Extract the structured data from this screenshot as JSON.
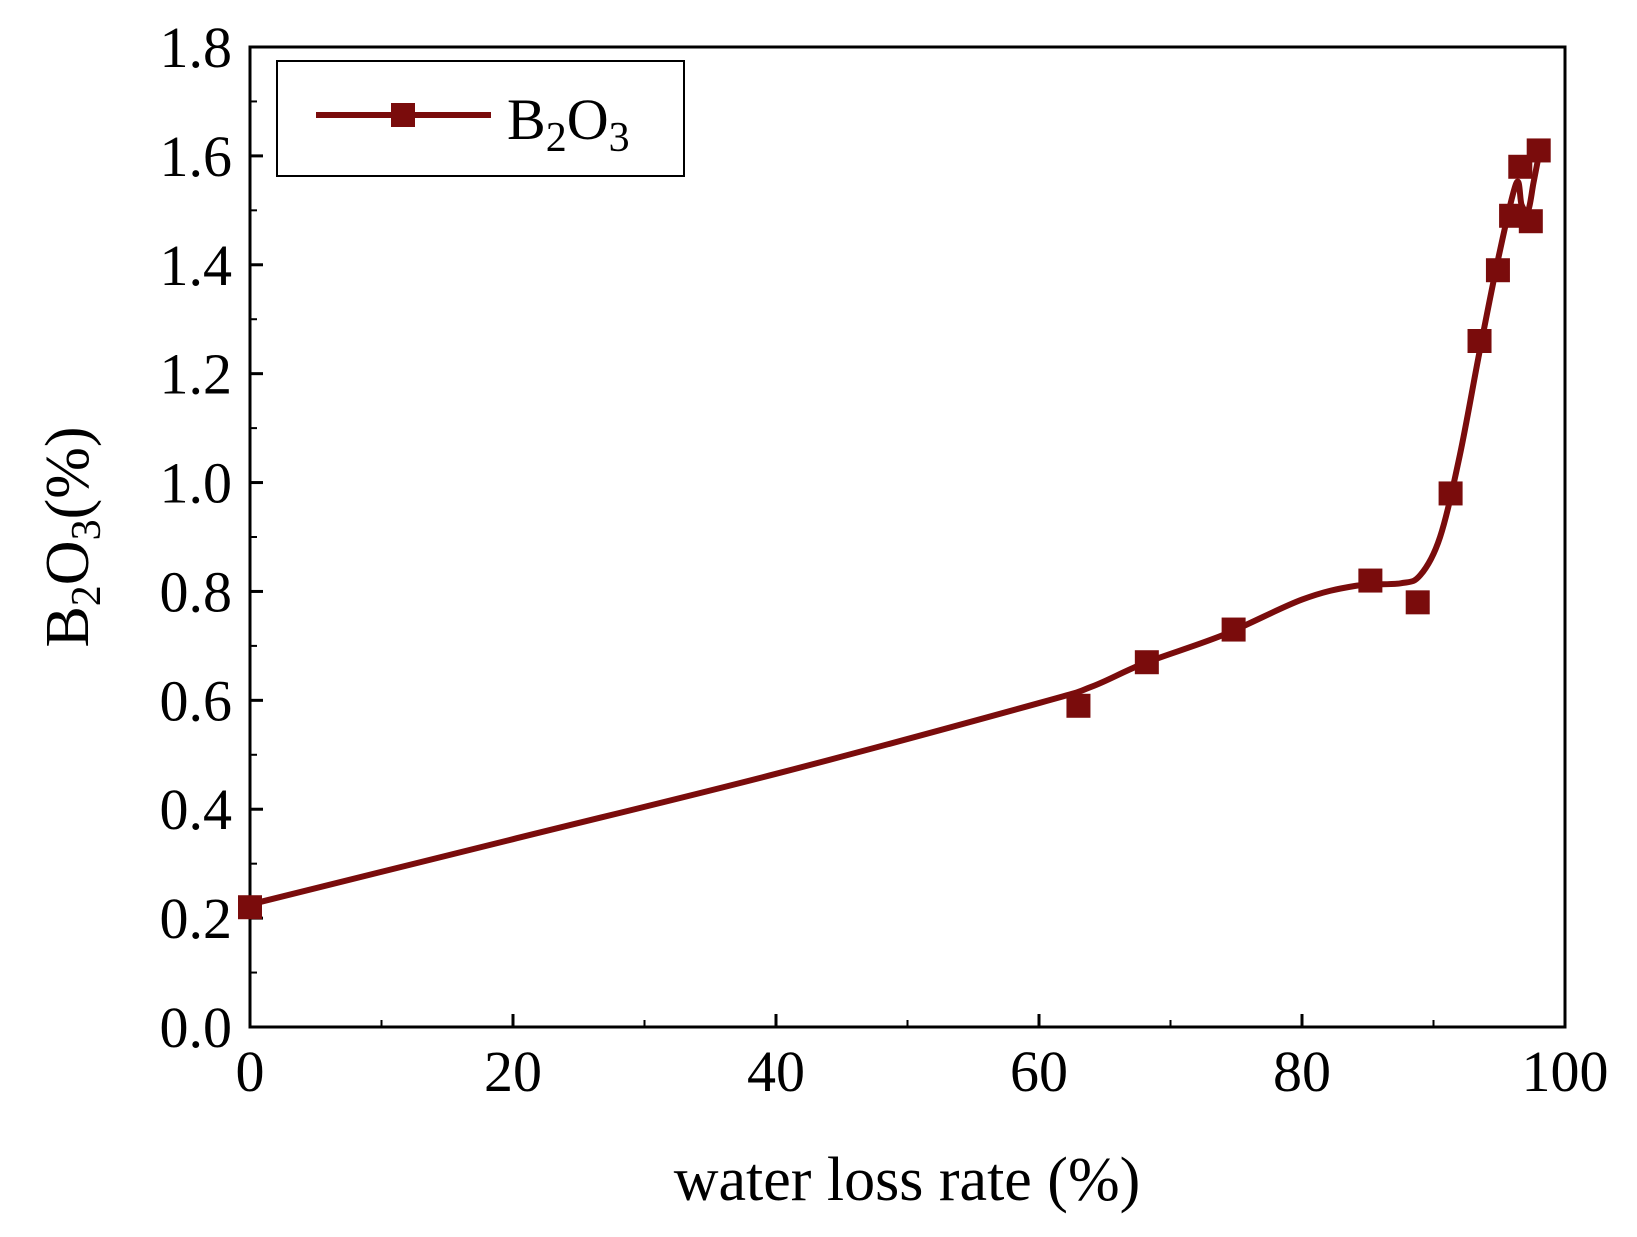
{
  "chart_data": {
    "type": "line",
    "title": "",
    "xlabel": "water loss rate (%)",
    "ylabel": {
      "base": "B",
      "sub1": "2",
      "mid": "O",
      "sub2": "3",
      "suffix": "(%)"
    },
    "xlim": [
      0,
      100
    ],
    "ylim": [
      0,
      1.8
    ],
    "xticks": [
      "0",
      "20",
      "40",
      "60",
      "80",
      "100"
    ],
    "yticks": [
      "0.0",
      "0.2",
      "0.4",
      "0.6",
      "0.8",
      "1.0",
      "1.2",
      "1.4",
      "1.6",
      "1.8"
    ],
    "grid": false,
    "legend_position": "top-left",
    "series": [
      {
        "name": "B2O3",
        "legend_label": {
          "base": "B",
          "sub1": "2",
          "mid": "O",
          "sub2": "3"
        },
        "color": "#7a0c0c",
        "marker": "square",
        "points": [
          {
            "x": 0,
            "y": 0.22
          },
          {
            "x": 63.0,
            "y": 0.59
          },
          {
            "x": 68.2,
            "y": 0.67
          },
          {
            "x": 74.8,
            "y": 0.73
          },
          {
            "x": 85.2,
            "y": 0.82
          },
          {
            "x": 88.8,
            "y": 0.78
          },
          {
            "x": 91.3,
            "y": 0.98
          },
          {
            "x": 93.5,
            "y": 1.26
          },
          {
            "x": 94.9,
            "y": 1.39
          },
          {
            "x": 95.9,
            "y": 1.49
          },
          {
            "x": 96.6,
            "y": 1.58
          },
          {
            "x": 97.4,
            "y": 1.48
          },
          {
            "x": 98.0,
            "y": 1.61
          }
        ],
        "fit_curve": [
          {
            "x": 0,
            "y": 0.225
          },
          {
            "x": 20,
            "y": 0.345
          },
          {
            "x": 40,
            "y": 0.465
          },
          {
            "x": 60,
            "y": 0.595
          },
          {
            "x": 64,
            "y": 0.625
          },
          {
            "x": 68,
            "y": 0.668
          },
          {
            "x": 74,
            "y": 0.72
          },
          {
            "x": 80,
            "y": 0.785
          },
          {
            "x": 84,
            "y": 0.81
          },
          {
            "x": 87.5,
            "y": 0.815
          },
          {
            "x": 89,
            "y": 0.83
          },
          {
            "x": 90.5,
            "y": 0.9
          },
          {
            "x": 92,
            "y": 1.05
          },
          {
            "x": 93.5,
            "y": 1.24
          },
          {
            "x": 95,
            "y": 1.42
          },
          {
            "x": 96.3,
            "y": 1.55
          },
          {
            "x": 96.7,
            "y": 1.51
          },
          {
            "x": 97.2,
            "y": 1.5
          },
          {
            "x": 97.6,
            "y": 1.55
          },
          {
            "x": 98.0,
            "y": 1.6
          }
        ]
      }
    ]
  }
}
